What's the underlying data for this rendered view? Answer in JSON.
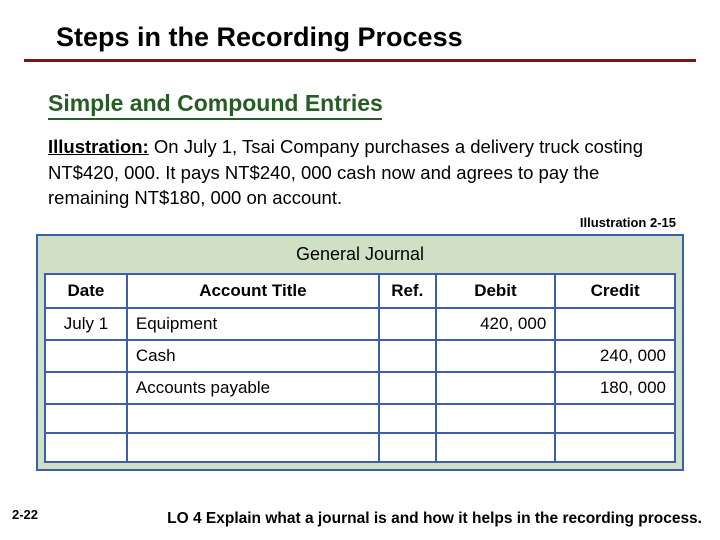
{
  "title": "Steps in the Recording Process",
  "section_title": "Simple and Compound Entries",
  "illustration_label": "Illustration:",
  "body": "  On July 1, Tsai Company purchases a delivery truck costing NT$420, 000.  It pays NT$240, 000 cash now and agrees to pay the remaining NT$180, 000 on account.",
  "illustration_ref": "Illustration 2-15",
  "journal": {
    "caption": "General Journal",
    "columns": [
      "Date",
      "Account Title",
      "Ref.",
      "Debit",
      "Credit"
    ],
    "rows": [
      {
        "date": "July 1",
        "title": "Equipment",
        "indent": false,
        "ref": "",
        "debit": "420, 000",
        "credit": ""
      },
      {
        "date": "",
        "title": "Cash",
        "indent": true,
        "ref": "",
        "debit": "",
        "credit": "240, 000"
      },
      {
        "date": "",
        "title": "Accounts payable",
        "indent": true,
        "ref": "",
        "debit": "",
        "credit": "180, 000"
      },
      {
        "date": "",
        "title": "",
        "indent": false,
        "ref": "",
        "debit": "",
        "credit": ""
      },
      {
        "date": "",
        "title": "",
        "indent": false,
        "ref": "",
        "debit": "",
        "credit": ""
      }
    ],
    "colors": {
      "border": "#3b5faa",
      "panel_bg": "#cfe0c4",
      "cell_bg": "#ffffff"
    }
  },
  "page_number": "2-22",
  "learning_objective": "LO 4  Explain what a journal is and how it helps in the recording process.",
  "colors": {
    "title_rule": "#7b1415",
    "section_title": "#255d25",
    "background": "#ffffff"
  }
}
